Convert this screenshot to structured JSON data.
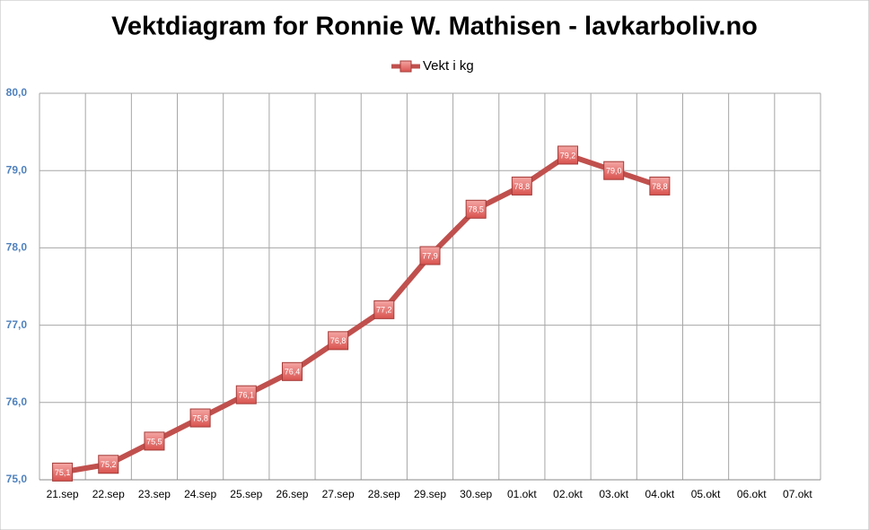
{
  "chart_data": {
    "type": "line",
    "title": "Vektdiagram for Ronnie W. Mathisen - lavkarboliv.no",
    "categories": [
      "21.sep",
      "22.sep",
      "23.sep",
      "24.sep",
      "25.sep",
      "26.sep",
      "27.sep",
      "28.sep",
      "29.sep",
      "30.sep",
      "01.okt",
      "02.okt",
      "03.okt",
      "04.okt",
      "05.okt",
      "06.okt",
      "07.okt"
    ],
    "series": [
      {
        "name": "Vekt i kg",
        "color": "#c0504d",
        "values": [
          75.1,
          75.2,
          75.5,
          75.8,
          76.1,
          76.4,
          76.8,
          77.2,
          77.9,
          78.5,
          78.8,
          79.2,
          79.0,
          78.8,
          null,
          null,
          null
        ],
        "value_labels": [
          "75,1",
          "75,2",
          "75,5",
          "75,8",
          "76,1",
          "76,4",
          "76,8",
          "77,2",
          "77,9",
          "78,5",
          "78,8",
          "79,2",
          "79,0",
          "78,8",
          null,
          null,
          null
        ]
      }
    ],
    "ylim": [
      75,
      80
    ],
    "yticks": [
      {
        "value": 75,
        "label": "75,0"
      },
      {
        "value": 76,
        "label": "76,0"
      },
      {
        "value": 77,
        "label": "77,0"
      },
      {
        "value": 78,
        "label": "78,0"
      },
      {
        "value": 79,
        "label": "79,0"
      },
      {
        "value": 80,
        "label": "80,0"
      }
    ],
    "grid": true,
    "legend": "top"
  }
}
